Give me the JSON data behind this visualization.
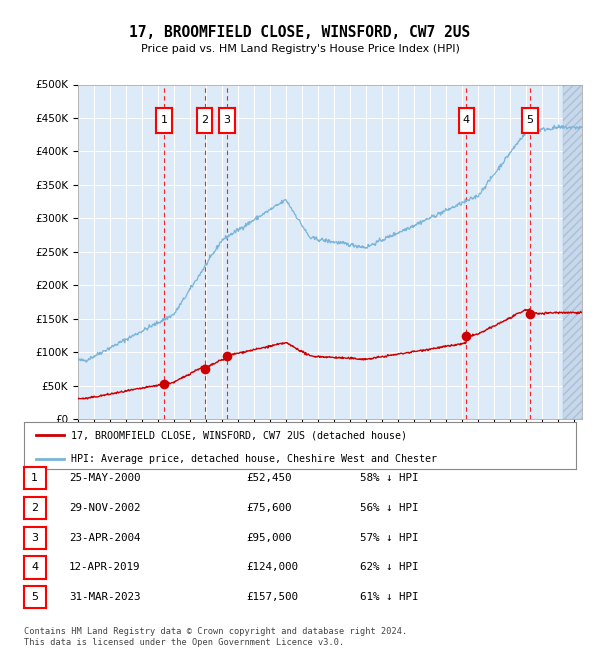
{
  "title": "17, BROOMFIELD CLOSE, WINSFORD, CW7 2US",
  "subtitle": "Price paid vs. HM Land Registry's House Price Index (HPI)",
  "hpi_color": "#7ab4d8",
  "price_color": "#cc0000",
  "bg_color": "#ddeaf7",
  "ylim": [
    0,
    500000
  ],
  "yticks": [
    0,
    50000,
    100000,
    150000,
    200000,
    250000,
    300000,
    350000,
    400000,
    450000,
    500000
  ],
  "xlim_start": 1995.0,
  "xlim_end": 2026.5,
  "sales": [
    {
      "num": 1,
      "year": 2000.39,
      "price": 52450,
      "date": "25-MAY-2000",
      "pct": "58%"
    },
    {
      "num": 2,
      "year": 2002.91,
      "price": 75600,
      "date": "29-NOV-2002",
      "pct": "56%"
    },
    {
      "num": 3,
      "year": 2004.31,
      "price": 95000,
      "date": "23-APR-2004",
      "pct": "57%"
    },
    {
      "num": 4,
      "year": 2019.28,
      "price": 124000,
      "date": "12-APR-2019",
      "pct": "62%"
    },
    {
      "num": 5,
      "year": 2023.25,
      "price": 157500,
      "date": "31-MAR-2023",
      "pct": "61%"
    }
  ],
  "legend_line1": "17, BROOMFIELD CLOSE, WINSFORD, CW7 2US (detached house)",
  "legend_line2": "HPI: Average price, detached house, Cheshire West and Chester",
  "footer": "Contains HM Land Registry data © Crown copyright and database right 2024.\nThis data is licensed under the Open Government Licence v3.0.",
  "table_rows": [
    [
      "1",
      "25-MAY-2000",
      "£52,450",
      "58% ↓ HPI"
    ],
    [
      "2",
      "29-NOV-2002",
      "£75,600",
      "56% ↓ HPI"
    ],
    [
      "3",
      "23-APR-2004",
      "£95,000",
      "57% ↓ HPI"
    ],
    [
      "4",
      "12-APR-2019",
      "£124,000",
      "62% ↓ HPI"
    ],
    [
      "5",
      "31-MAR-2023",
      "£157,500",
      "61% ↓ HPI"
    ]
  ]
}
